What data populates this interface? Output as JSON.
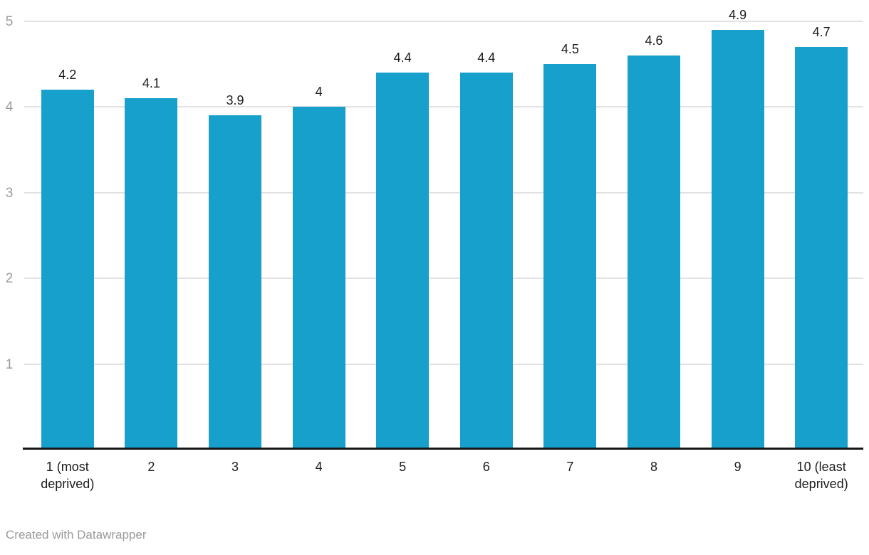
{
  "chart_data": {
    "type": "bar",
    "categories": [
      "1 (most deprived)",
      "2",
      "3",
      "4",
      "5",
      "6",
      "7",
      "8",
      "9",
      "10 (least deprived)"
    ],
    "category_lines": [
      [
        "1 (most",
        "deprived)"
      ],
      [
        "2"
      ],
      [
        "3"
      ],
      [
        "4"
      ],
      [
        "5"
      ],
      [
        "6"
      ],
      [
        "7"
      ],
      [
        "8"
      ],
      [
        "9"
      ],
      [
        "10 (least",
        "deprived)"
      ]
    ],
    "values": [
      4.2,
      4.1,
      3.9,
      4,
      4.4,
      4.4,
      4.5,
      4.6,
      4.9,
      4.7
    ],
    "value_labels": [
      "4.2",
      "4.1",
      "3.9",
      "4",
      "4.4",
      "4.4",
      "4.5",
      "4.6",
      "4.9",
      "4.7"
    ],
    "title": "",
    "xlabel": "",
    "ylabel": "",
    "ylim": [
      0,
      5
    ],
    "yticks": [
      1,
      2,
      3,
      4,
      5
    ],
    "ytick_labels": [
      "1",
      "2",
      "3",
      "4",
      "5"
    ],
    "grid": true,
    "legend": "none",
    "colors": {
      "bar": "#18a0cc",
      "gridline": "#e2e2e2",
      "axis_line": "#161616",
      "value_label": "#1c1c1c",
      "x_tick_label": "#1c1c1c",
      "y_tick_label": "#9d9d9d",
      "credit": "#9a9a9a",
      "background": "#ffffff"
    }
  },
  "footer": {
    "credit": "Created with Datawrapper"
  }
}
